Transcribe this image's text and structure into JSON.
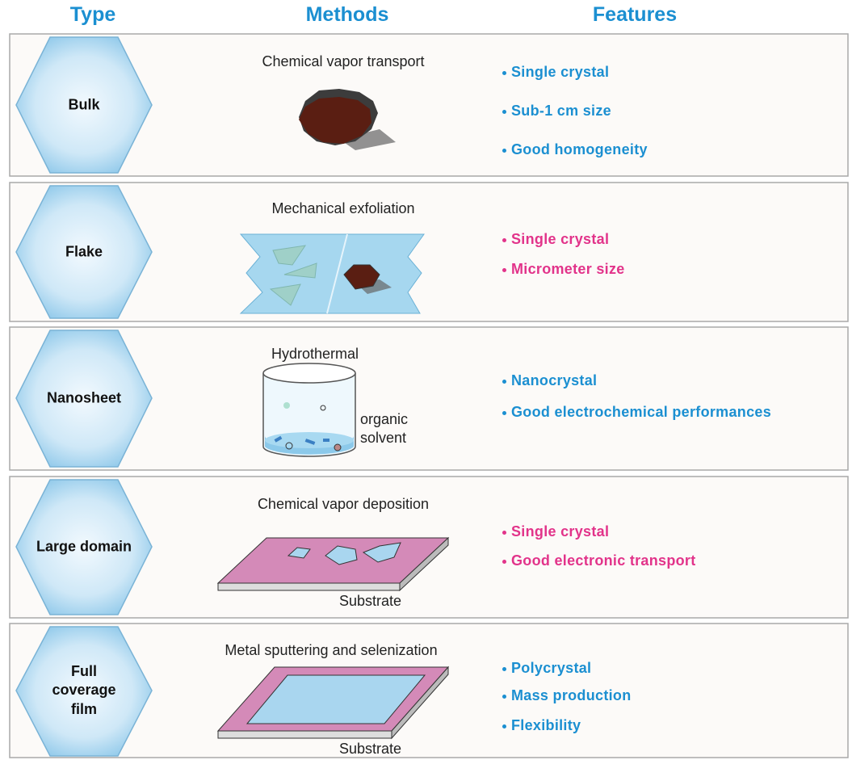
{
  "header": {
    "type": "Type",
    "methods": "Methods",
    "features": "Features"
  },
  "rows": [
    {
      "type": "Bulk",
      "method": "Chemical vapor transport",
      "features": [
        "Single crystal",
        "Sub-1 cm size",
        "Good homogeneity"
      ]
    },
    {
      "type": "Flake",
      "method": "Mechanical exfoliation",
      "features": [
        "Single crystal",
        "Micrometer size"
      ]
    },
    {
      "type": "Nanosheet",
      "method": "Hydrothermal",
      "solvent_label": "organic solvent",
      "features": [
        "Nanocrystal",
        "Good electrochemical performances"
      ]
    },
    {
      "type": "Large domain",
      "method": "Chemical vapor deposition",
      "substrate_label": "Substrate",
      "features": [
        "Single crystal",
        "Good electronic transport"
      ]
    },
    {
      "type": "Full coverage film",
      "method": "Metal sputtering and selenization",
      "substrate_label": "Substrate",
      "features": [
        "Polycrystal",
        "Mass production",
        "Flexibility"
      ]
    }
  ]
}
